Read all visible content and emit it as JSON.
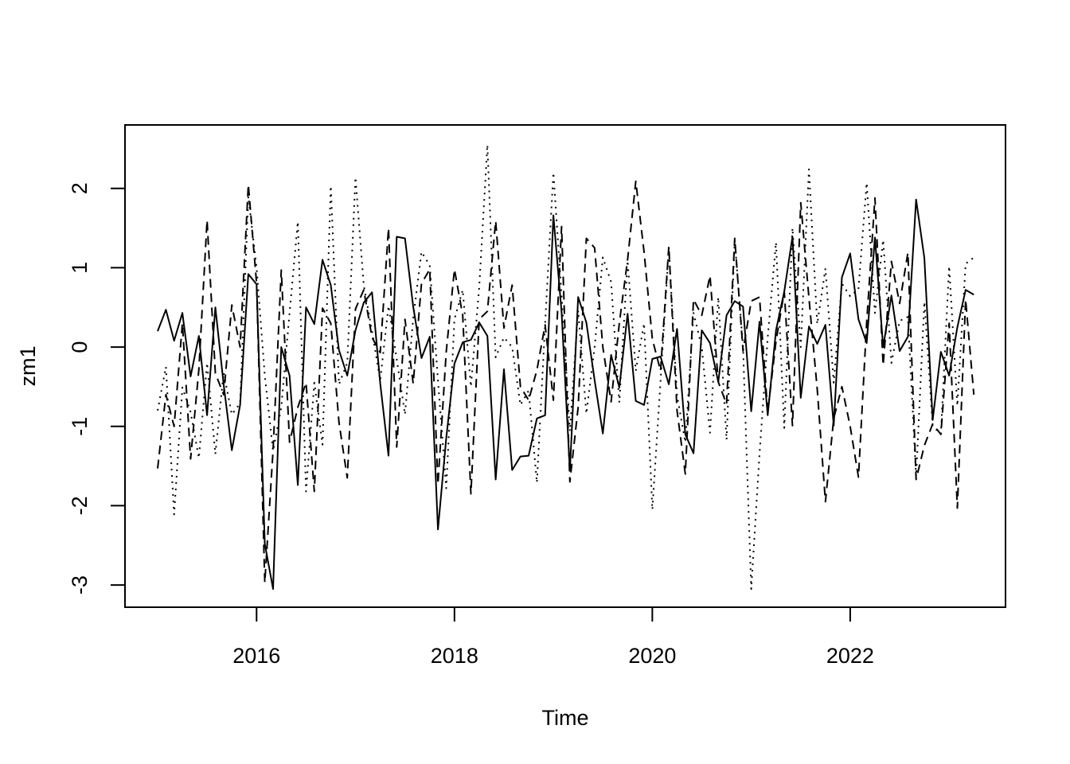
{
  "chart_data": {
    "type": "line",
    "title": "",
    "xlabel": "Time",
    "ylabel": "zm1",
    "x_start": 2015.0,
    "x_step": 0.08333333,
    "xlim": [
      2014.67,
      2023.57
    ],
    "ylim": [
      -3.28,
      2.8
    ],
    "x_ticks": [
      2016,
      2018,
      2020,
      2022
    ],
    "y_ticks": [
      -3,
      -2,
      -1,
      0,
      1,
      2
    ],
    "grid": false,
    "legend": "none",
    "series": [
      {
        "line_style": "solid",
        "values": [
          0.2,
          0.47,
          0.08,
          0.43,
          -0.37,
          0.14,
          -0.86,
          0.5,
          -0.47,
          -1.3,
          -0.73,
          0.92,
          0.79,
          -2.48,
          -3.05,
          0.0,
          -0.36,
          -1.74,
          0.5,
          0.29,
          1.1,
          0.78,
          -0.04,
          -0.36,
          0.21,
          0.56,
          0.69,
          -0.46,
          -1.37,
          1.39,
          1.37,
          0.51,
          -0.14,
          0.13,
          -2.3,
          -1.15,
          -0.21,
          0.06,
          0.09,
          0.31,
          0.14,
          -1.67,
          -0.28,
          -1.55,
          -1.38,
          -1.37,
          -0.9,
          -0.86,
          1.66,
          0.44,
          -1.56,
          0.63,
          0.31,
          -0.42,
          -1.09,
          -0.1,
          -0.51,
          0.42,
          -0.68,
          -0.73,
          -0.15,
          -0.12,
          -0.47,
          0.23,
          -1.1,
          -1.34,
          0.21,
          0.05,
          -0.44,
          0.4,
          0.58,
          0.51,
          -0.81,
          0.32,
          -0.86,
          0.21,
          0.7,
          1.39,
          -0.64,
          0.26,
          0.04,
          0.28,
          -0.99,
          0.88,
          1.18,
          0.35,
          0.05,
          1.38,
          0.0,
          0.65,
          -0.05,
          0.13,
          1.86,
          1.12,
          -0.92,
          -0.06,
          -0.36,
          0.25,
          0.72,
          0.66
        ]
      },
      {
        "line_style": "dashed",
        "values": [
          -1.53,
          -0.6,
          -1.0,
          0.3,
          -1.41,
          -0.28,
          1.6,
          -0.33,
          -0.6,
          0.53,
          0.0,
          2.05,
          0.8,
          -2.97,
          -1.3,
          0.97,
          -1.2,
          -0.76,
          -0.45,
          -1.82,
          0.49,
          0.3,
          -0.95,
          -1.65,
          0.48,
          0.72,
          0.12,
          -0.07,
          1.5,
          -1.26,
          0.35,
          -0.46,
          0.8,
          0.98,
          -1.73,
          -0.06,
          0.98,
          0.4,
          -1.85,
          0.35,
          0.45,
          1.59,
          0.24,
          0.78,
          -0.5,
          -0.67,
          -0.29,
          0.28,
          -0.67,
          1.52,
          -1.7,
          -0.76,
          1.37,
          1.25,
          0.0,
          -0.69,
          0.3,
          1.1,
          2.09,
          1.2,
          0.1,
          -0.3,
          1.27,
          -0.8,
          -1.6,
          0.6,
          0.4,
          0.9,
          -0.44,
          -0.72,
          1.37,
          -0.05,
          0.58,
          0.63,
          -0.82,
          0.07,
          0.7,
          -0.99,
          1.82,
          0.62,
          -0.53,
          -1.95,
          -0.9,
          -0.5,
          -1.0,
          -1.64,
          0.31,
          1.88,
          -0.23,
          1.08,
          0.55,
          1.19,
          -1.67,
          -1.24,
          -0.97,
          -1.1,
          0.3,
          -2.03,
          0.6,
          -0.6
        ]
      },
      {
        "line_style": "dotted",
        "values": [
          -0.8,
          -0.25,
          -2.11,
          -0.51,
          -0.82,
          -1.4,
          -0.2,
          -1.35,
          -0.32,
          -0.85,
          -0.71,
          1.9,
          1.0,
          -0.36,
          -1.31,
          -0.76,
          0.43,
          1.58,
          -1.82,
          -0.45,
          -1.23,
          2.03,
          -0.47,
          -0.2,
          2.14,
          0.78,
          0.2,
          -0.42,
          0.52,
          -0.15,
          -0.85,
          0.36,
          1.2,
          1.03,
          -0.42,
          -1.78,
          0.35,
          0.72,
          -0.5,
          0.75,
          2.55,
          -0.13,
          0.12,
          0.0,
          -0.73,
          -0.55,
          -1.71,
          0.29,
          2.2,
          0.65,
          -1.06,
          0.46,
          -0.84,
          0.0,
          1.13,
          0.82,
          -0.7,
          1.09,
          -0.3,
          0.3,
          -2.05,
          -0.43,
          1.25,
          -0.61,
          -1.2,
          0.43,
          0.0,
          -1.08,
          0.63,
          -1.17,
          1.35,
          0.0,
          -3.05,
          -1.35,
          0.12,
          1.32,
          -1.02,
          1.5,
          0.0,
          2.24,
          0.29,
          0.99,
          -0.45,
          0.8,
          0.64,
          0.73,
          2.07,
          0.43,
          1.35,
          -0.2,
          0.33,
          0.38,
          -1.63,
          0.57,
          -0.99,
          -1.1,
          1.02,
          -0.74,
          1.05,
          1.13
        ]
      }
    ]
  }
}
